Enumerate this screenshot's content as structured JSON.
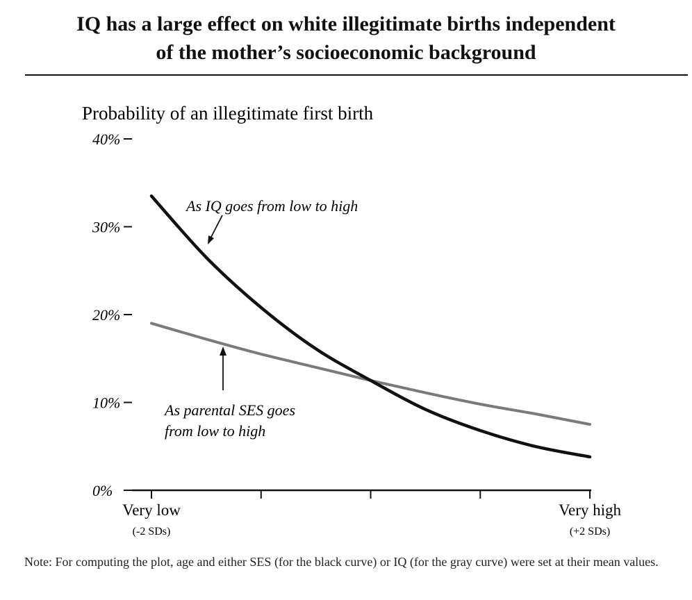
{
  "chart_data": {
    "type": "line",
    "title": "IQ has a large effect on white illegitimate births independent of the mother’s socioeconomic background",
    "title_lines": [
      "IQ has a large effect on white illegitimate births independent",
      "of the mother’s socioeconomic background"
    ],
    "ylabel": "Probability of an illegitimate first birth",
    "xlabel": "",
    "x": [
      -2,
      -1.5,
      -1,
      -0.5,
      0,
      0.5,
      1,
      1.5,
      2
    ],
    "ylim": [
      0,
      40
    ],
    "xlim": [
      -2,
      2
    ],
    "y_ticks": [
      {
        "value": 0,
        "label": "0%"
      },
      {
        "value": 10,
        "label": "10%"
      },
      {
        "value": 20,
        "label": "20%"
      },
      {
        "value": 30,
        "label": "30%"
      },
      {
        "value": 40,
        "label": "40%"
      }
    ],
    "x_ticks": [
      -2,
      -1,
      0,
      1,
      2
    ],
    "x_tick_labels": [
      {
        "value": -2,
        "label": "Very low",
        "sub": "(-2 SDs)"
      },
      {
        "value": 2,
        "label": "Very high",
        "sub": "(+2 SDs)"
      }
    ],
    "series": [
      {
        "key": "iq",
        "color": "#111111",
        "values": [
          33.5,
          26.5,
          20.8,
          16.1,
          12.5,
          9.2,
          6.8,
          5.0,
          3.8
        ]
      },
      {
        "key": "ses",
        "color": "#7a7a7a",
        "values": [
          19.0,
          17.2,
          15.5,
          14.0,
          12.5,
          11.1,
          9.8,
          8.7,
          7.5
        ]
      }
    ],
    "annotations": [
      {
        "key": "iq",
        "lines": [
          "As IQ goes from low to high"
        ]
      },
      {
        "key": "ses",
        "lines": [
          "As parental SES goes",
          "from low to high"
        ]
      }
    ],
    "grid": false,
    "legend": "none"
  },
  "note": "Note: For computing the plot, age and either SES (for the black curve) or IQ (for the gray curve) were set at their mean values."
}
